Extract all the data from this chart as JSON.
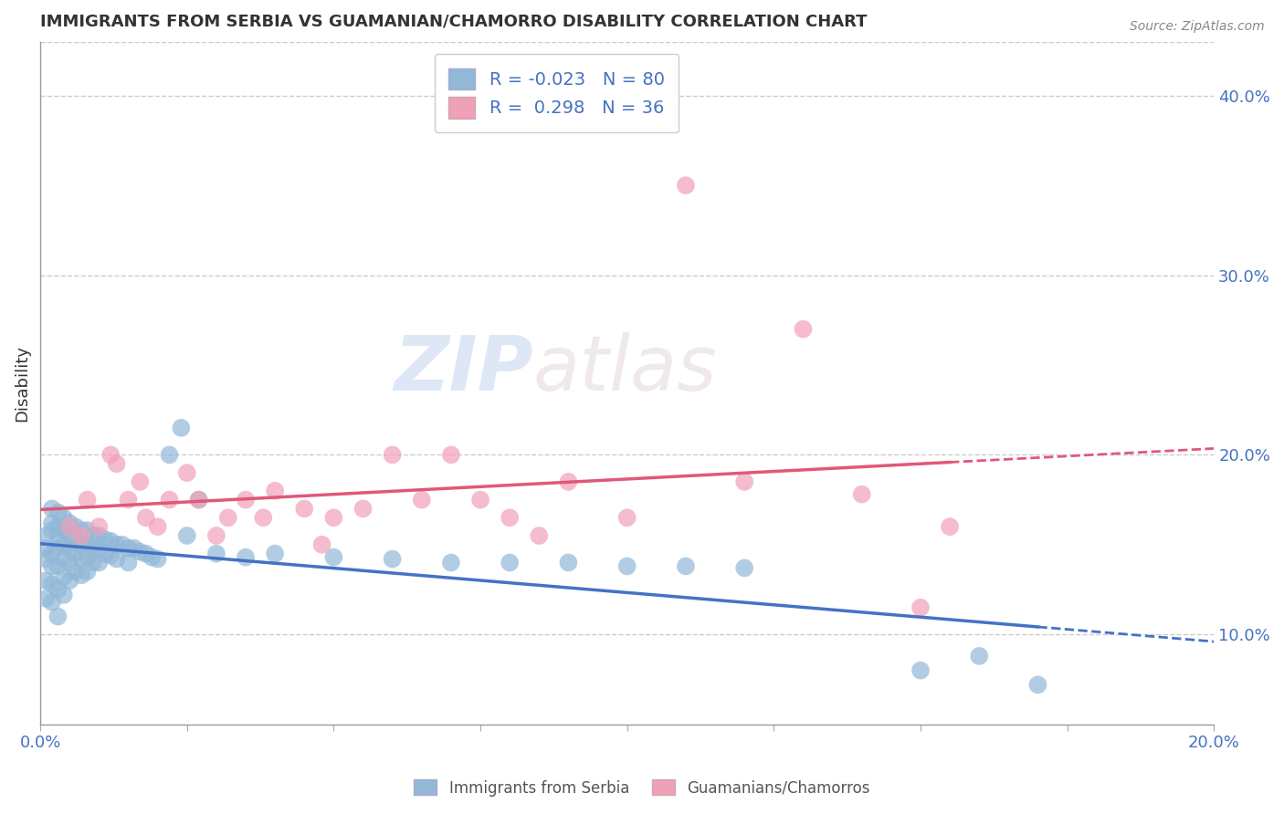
{
  "title": "IMMIGRANTS FROM SERBIA VS GUAMANIAN/CHAMORRO DISABILITY CORRELATION CHART",
  "source": "Source: ZipAtlas.com",
  "ylabel": "Disability",
  "right_yticks": [
    0.1,
    0.2,
    0.3,
    0.4
  ],
  "right_yticklabels": [
    "10.0%",
    "20.0%",
    "30.0%",
    "40.0%"
  ],
  "xlim": [
    0.0,
    0.2
  ],
  "ylim": [
    0.05,
    0.43
  ],
  "blue_R": -0.023,
  "blue_N": 80,
  "pink_R": 0.298,
  "pink_N": 36,
  "blue_color": "#92b8d8",
  "pink_color": "#f0a0b8",
  "blue_line_color": "#4472c4",
  "pink_line_color": "#e05878",
  "watermark_zip": "ZIP",
  "watermark_atlas": "atlas",
  "legend_label_blue": "Immigrants from Serbia",
  "legend_label_pink": "Guamanians/Chamorros",
  "blue_scatter_x": [
    0.001,
    0.001,
    0.001,
    0.001,
    0.001,
    0.002,
    0.002,
    0.002,
    0.002,
    0.002,
    0.002,
    0.002,
    0.003,
    0.003,
    0.003,
    0.003,
    0.003,
    0.003,
    0.003,
    0.004,
    0.004,
    0.004,
    0.004,
    0.004,
    0.004,
    0.005,
    0.005,
    0.005,
    0.005,
    0.005,
    0.006,
    0.006,
    0.006,
    0.006,
    0.007,
    0.007,
    0.007,
    0.007,
    0.008,
    0.008,
    0.008,
    0.008,
    0.009,
    0.009,
    0.009,
    0.01,
    0.01,
    0.01,
    0.011,
    0.011,
    0.012,
    0.012,
    0.013,
    0.013,
    0.014,
    0.015,
    0.015,
    0.016,
    0.017,
    0.018,
    0.019,
    0.02,
    0.022,
    0.024,
    0.025,
    0.027,
    0.03,
    0.035,
    0.04,
    0.05,
    0.06,
    0.07,
    0.08,
    0.09,
    0.1,
    0.11,
    0.12,
    0.15,
    0.16,
    0.17
  ],
  "blue_scatter_y": [
    0.155,
    0.148,
    0.142,
    0.13,
    0.12,
    0.17,
    0.162,
    0.158,
    0.145,
    0.138,
    0.128,
    0.118,
    0.168,
    0.16,
    0.155,
    0.148,
    0.138,
    0.125,
    0.11,
    0.165,
    0.158,
    0.15,
    0.142,
    0.132,
    0.122,
    0.162,
    0.155,
    0.148,
    0.14,
    0.13,
    0.16,
    0.152,
    0.145,
    0.135,
    0.158,
    0.15,
    0.142,
    0.133,
    0.158,
    0.15,
    0.143,
    0.135,
    0.155,
    0.148,
    0.14,
    0.155,
    0.148,
    0.14,
    0.153,
    0.145,
    0.152,
    0.144,
    0.15,
    0.142,
    0.15,
    0.148,
    0.14,
    0.148,
    0.146,
    0.145,
    0.143,
    0.142,
    0.2,
    0.215,
    0.155,
    0.175,
    0.145,
    0.143,
    0.145,
    0.143,
    0.142,
    0.14,
    0.14,
    0.14,
    0.138,
    0.138,
    0.137,
    0.08,
    0.088,
    0.072
  ],
  "pink_scatter_x": [
    0.005,
    0.007,
    0.008,
    0.01,
    0.012,
    0.013,
    0.015,
    0.017,
    0.018,
    0.02,
    0.022,
    0.025,
    0.027,
    0.03,
    0.032,
    0.035,
    0.038,
    0.04,
    0.045,
    0.048,
    0.05,
    0.055,
    0.06,
    0.065,
    0.07,
    0.075,
    0.08,
    0.085,
    0.09,
    0.1,
    0.11,
    0.12,
    0.13,
    0.14,
    0.15,
    0.155
  ],
  "pink_scatter_y": [
    0.16,
    0.155,
    0.175,
    0.16,
    0.2,
    0.195,
    0.175,
    0.185,
    0.165,
    0.16,
    0.175,
    0.19,
    0.175,
    0.155,
    0.165,
    0.175,
    0.165,
    0.18,
    0.17,
    0.15,
    0.165,
    0.17,
    0.2,
    0.175,
    0.2,
    0.175,
    0.165,
    0.155,
    0.185,
    0.165,
    0.35,
    0.185,
    0.27,
    0.178,
    0.115,
    0.16
  ]
}
